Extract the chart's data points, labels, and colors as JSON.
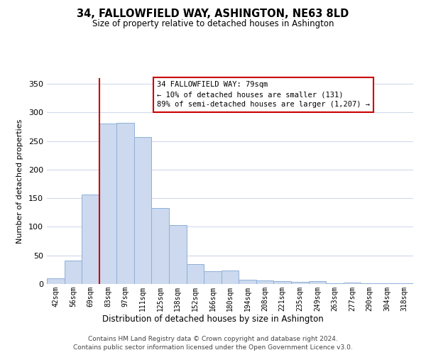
{
  "title": "34, FALLOWFIELD WAY, ASHINGTON, NE63 8LD",
  "subtitle": "Size of property relative to detached houses in Ashington",
  "xlabel": "Distribution of detached houses by size in Ashington",
  "ylabel": "Number of detached properties",
  "bar_labels": [
    "42sqm",
    "56sqm",
    "69sqm",
    "83sqm",
    "97sqm",
    "111sqm",
    "125sqm",
    "138sqm",
    "152sqm",
    "166sqm",
    "180sqm",
    "194sqm",
    "208sqm",
    "221sqm",
    "235sqm",
    "249sqm",
    "263sqm",
    "277sqm",
    "290sqm",
    "304sqm",
    "318sqm"
  ],
  "bar_values": [
    10,
    41,
    157,
    280,
    282,
    257,
    133,
    103,
    35,
    22,
    23,
    7,
    6,
    5,
    4,
    5,
    1,
    2,
    1,
    1,
    1
  ],
  "bar_color": "#ccd9ee",
  "bar_edge_color": "#8fb0d8",
  "vline_x_index": 2.5,
  "vline_color": "#cc0000",
  "ylim": [
    0,
    360
  ],
  "yticks": [
    0,
    50,
    100,
    150,
    200,
    250,
    300,
    350
  ],
  "annotation_line1": "34 FALLOWFIELD WAY: 79sqm",
  "annotation_line2": "← 10% of detached houses are smaller (131)",
  "annotation_line3": "89% of semi-detached houses are larger (1,207) →",
  "annotation_box_color": "#ffffff",
  "annotation_box_edge": "#cc0000",
  "footer_line1": "Contains HM Land Registry data © Crown copyright and database right 2024.",
  "footer_line2": "Contains public sector information licensed under the Open Government Licence v3.0.",
  "background_color": "#ffffff",
  "grid_color": "#d0daea"
}
